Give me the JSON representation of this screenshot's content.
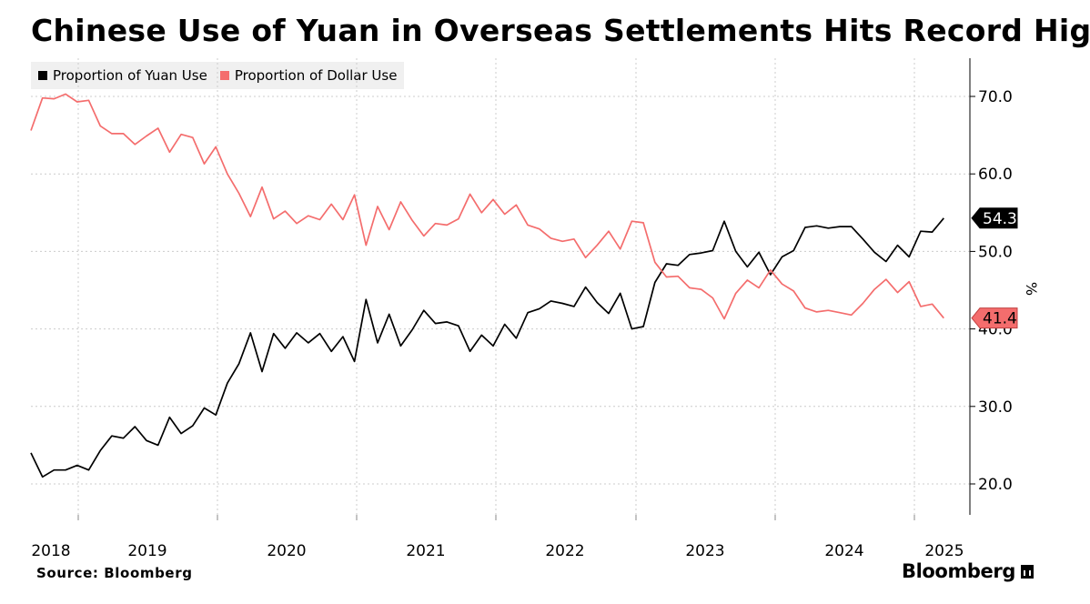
{
  "title": "Chinese Use of Yuan in Overseas Settlements Hits Record High",
  "source": "Source: Bloomberg",
  "brand": "Bloomberg",
  "colors": {
    "yuan": "#000000",
    "dollar": "#f46d6d",
    "grid": "#cccccc",
    "axis": "#000000"
  },
  "chart_data": {
    "type": "line",
    "title": "Chinese Use of Yuan in Overseas Settlements Hits Record High",
    "ylabel": "%",
    "ylim": [
      15,
      75
    ],
    "yticks": [
      20,
      30,
      40,
      50,
      60,
      70
    ],
    "ytick_labels": [
      "20.0",
      "30.0",
      "40.0",
      "50.0",
      "60.0",
      "70.0"
    ],
    "x_ticks": [
      "2018",
      "2019",
      "2020",
      "2021",
      "2022",
      "2023",
      "2024",
      "2025"
    ],
    "x_start": "2017-09",
    "grid": true,
    "legend_position": "top-left",
    "series": [
      {
        "name": "Proportion of Yuan Use",
        "color": "#000000",
        "end_label": "54.3",
        "values": [
          24.0,
          20.9,
          21.8,
          21.8,
          22.4,
          21.8,
          24.3,
          26.2,
          25.9,
          27.4,
          25.6,
          25.0,
          28.6,
          26.5,
          27.5,
          29.8,
          28.9,
          33.0,
          35.5,
          39.5,
          34.5,
          39.4,
          37.5,
          39.5,
          38.2,
          39.4,
          37.1,
          39.0,
          35.8,
          43.8,
          38.2,
          41.9,
          37.8,
          39.9,
          42.4,
          40.7,
          40.9,
          40.4,
          37.1,
          39.2,
          37.8,
          40.6,
          38.8,
          42.1,
          42.6,
          43.6,
          43.3,
          42.9,
          45.4,
          43.4,
          42.0,
          44.6,
          40.0,
          40.3,
          46.0,
          48.4,
          48.2,
          49.6,
          49.8,
          50.1,
          53.9,
          50.0,
          48.0,
          49.9,
          47.0,
          49.3,
          50.1,
          53.1,
          53.3,
          53.0,
          53.2,
          53.2,
          51.6,
          49.9,
          48.7,
          50.8,
          49.3,
          52.6,
          52.5,
          54.3
        ]
      },
      {
        "name": "Proportion of Dollar Use",
        "color": "#f46d6d",
        "end_label": "41.4",
        "values": [
          65.6,
          69.8,
          69.7,
          70.3,
          69.3,
          69.5,
          66.2,
          65.2,
          65.2,
          63.8,
          64.9,
          65.9,
          62.8,
          65.1,
          64.7,
          61.3,
          63.5,
          60.0,
          57.5,
          54.5,
          58.3,
          54.2,
          55.2,
          53.6,
          54.6,
          54.1,
          56.1,
          54.1,
          57.3,
          50.8,
          55.8,
          52.8,
          56.4,
          54.0,
          52.0,
          53.6,
          53.4,
          54.2,
          57.4,
          55.0,
          56.7,
          54.8,
          56.0,
          53.4,
          52.9,
          51.7,
          51.3,
          51.6,
          49.2,
          50.8,
          52.6,
          50.3,
          53.9,
          53.7,
          48.6,
          46.7,
          46.8,
          45.3,
          45.1,
          44.0,
          41.3,
          44.6,
          46.3,
          45.3,
          47.6,
          45.8,
          44.9,
          42.7,
          42.2,
          42.4,
          42.1,
          41.8,
          43.3,
          45.1,
          46.4,
          44.7,
          46.1,
          42.9,
          43.2,
          41.4
        ]
      }
    ]
  }
}
